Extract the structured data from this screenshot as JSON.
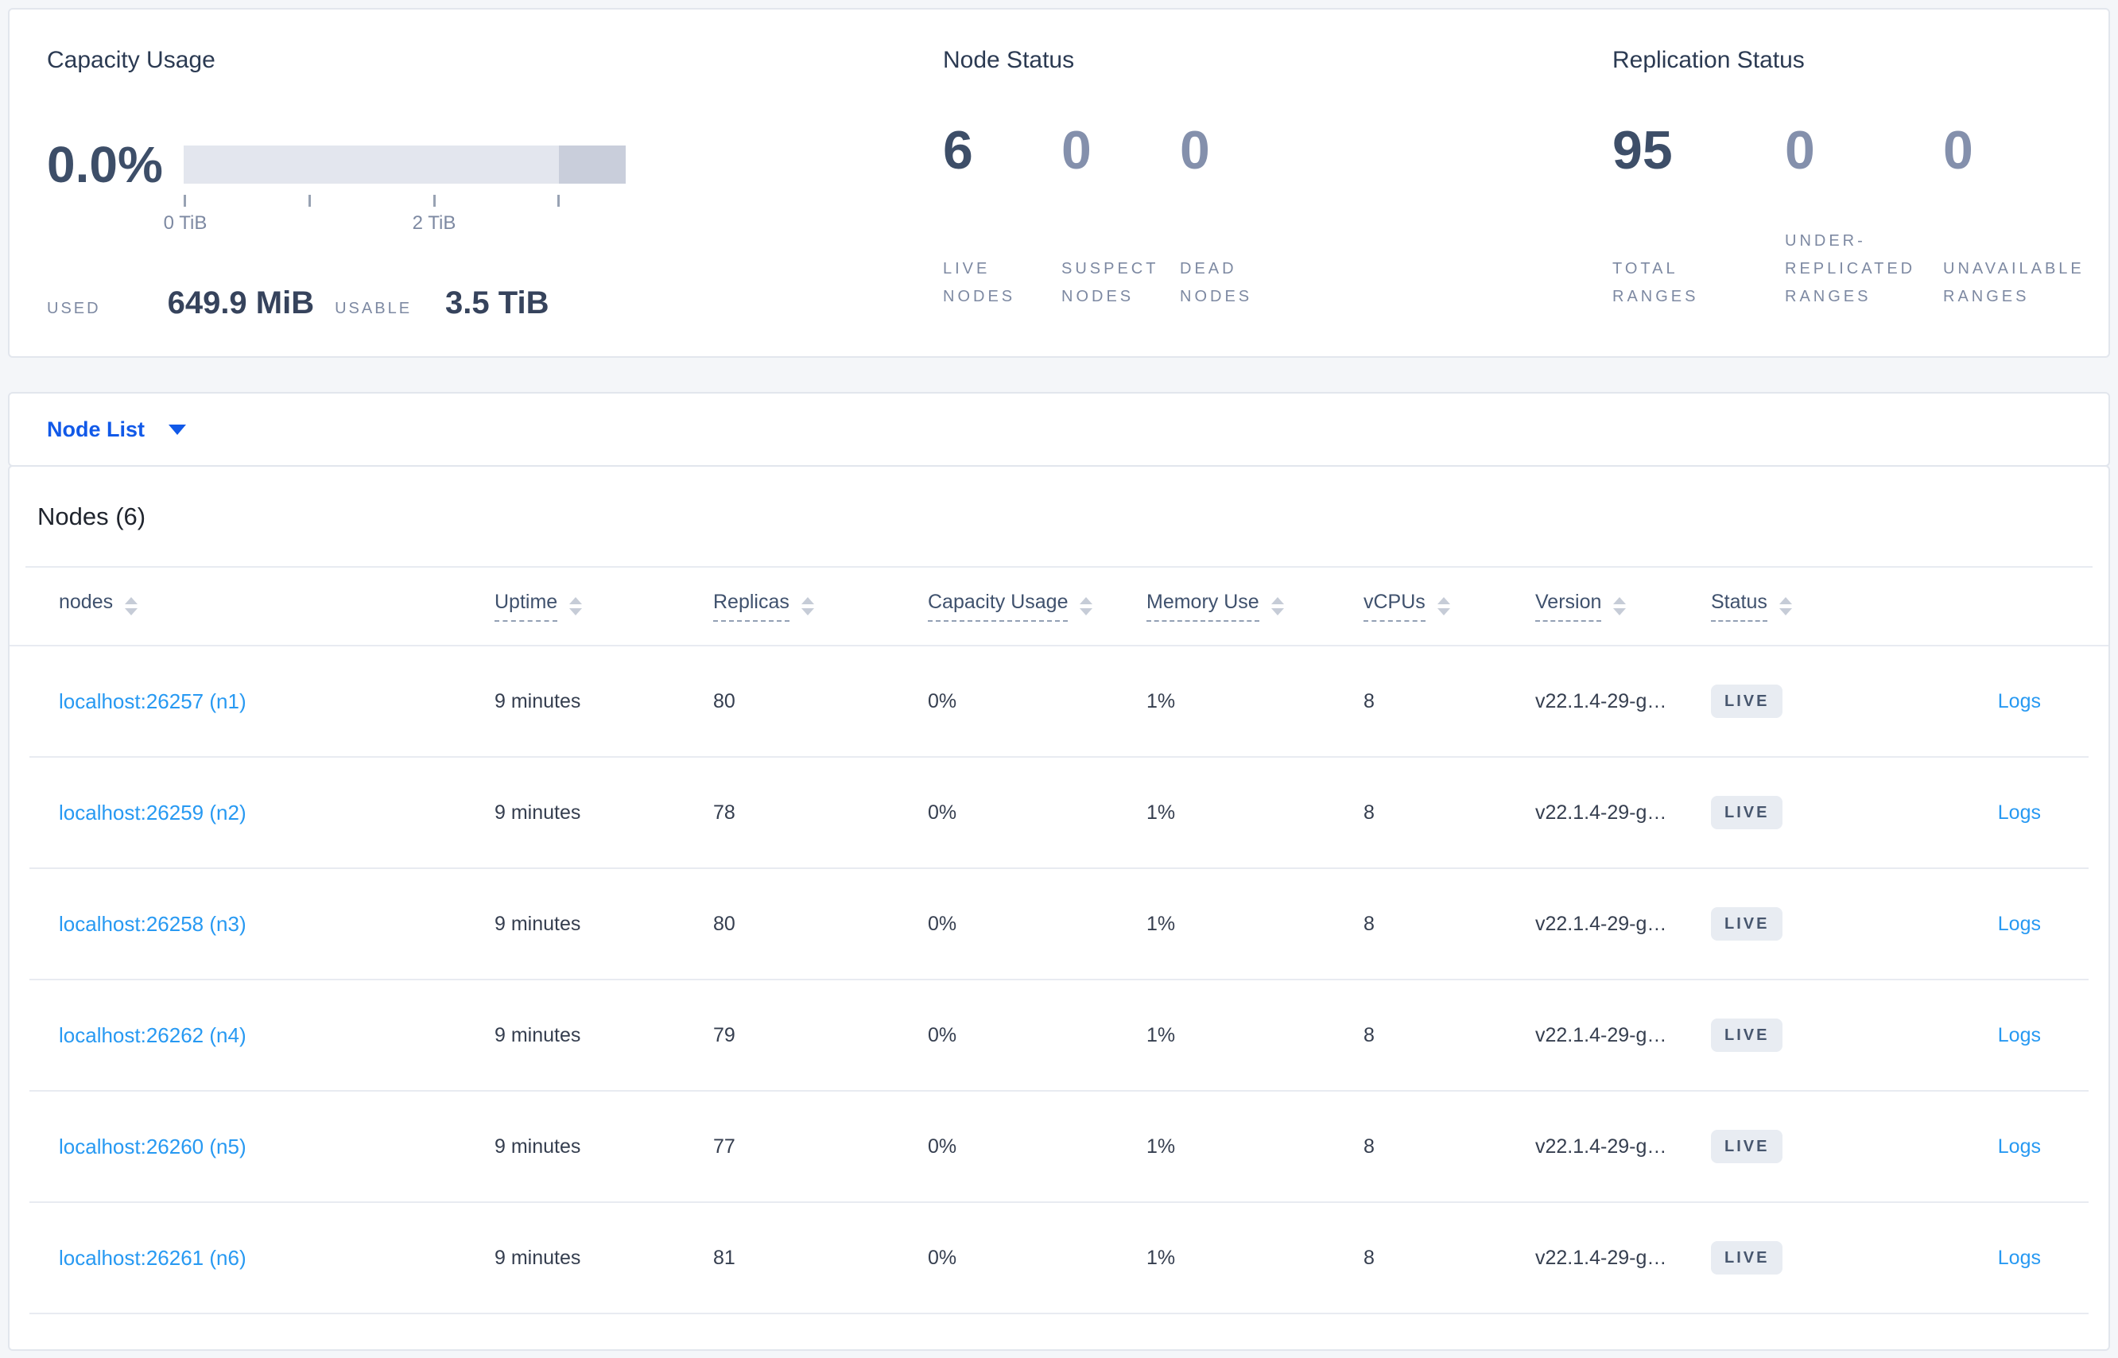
{
  "summary": {
    "capacity": {
      "title": "Capacity Usage",
      "percent": "0.0%",
      "axis_tick_0": "0 TiB",
      "axis_tick_2": "2 TiB",
      "used_label": "USED",
      "used_value": "649.9 MiB",
      "usable_label": "USABLE",
      "usable_value": "3.5 TiB"
    },
    "node_status": {
      "title": "Node Status",
      "stats": [
        {
          "value": "6",
          "label": "LIVE\nNODES"
        },
        {
          "value": "0",
          "label": "SUSPECT\nNODES"
        },
        {
          "value": "0",
          "label": "DEAD\nNODES"
        }
      ]
    },
    "replication": {
      "title": "Replication Status",
      "stats": [
        {
          "value": "95",
          "label": "TOTAL\nRANGES"
        },
        {
          "value": "0",
          "label": "UNDER-\nREPLICATED\nRANGES"
        },
        {
          "value": "0",
          "label": "UNAVAILABLE\nRANGES"
        }
      ]
    }
  },
  "view_selector": {
    "label": "Node List"
  },
  "table": {
    "title": "Nodes (6)",
    "columns": [
      {
        "label": "nodes",
        "dashed": false
      },
      {
        "label": "Uptime",
        "dashed": true
      },
      {
        "label": "Replicas",
        "dashed": true
      },
      {
        "label": "Capacity Usage",
        "dashed": true
      },
      {
        "label": "Memory Use",
        "dashed": true
      },
      {
        "label": "vCPUs",
        "dashed": true
      },
      {
        "label": "Version",
        "dashed": true
      },
      {
        "label": "Status",
        "dashed": true
      }
    ],
    "rows": [
      {
        "node": "localhost:26257 (n1)",
        "uptime": "9 minutes",
        "replicas": "80",
        "capacity": "0%",
        "memory": "1%",
        "vcpus": "8",
        "version": "v22.1.4-29-g…",
        "status": "LIVE",
        "logs": "Logs"
      },
      {
        "node": "localhost:26259 (n2)",
        "uptime": "9 minutes",
        "replicas": "78",
        "capacity": "0%",
        "memory": "1%",
        "vcpus": "8",
        "version": "v22.1.4-29-g…",
        "status": "LIVE",
        "logs": "Logs"
      },
      {
        "node": "localhost:26258 (n3)",
        "uptime": "9 minutes",
        "replicas": "80",
        "capacity": "0%",
        "memory": "1%",
        "vcpus": "8",
        "version": "v22.1.4-29-g…",
        "status": "LIVE",
        "logs": "Logs"
      },
      {
        "node": "localhost:26262 (n4)",
        "uptime": "9 minutes",
        "replicas": "79",
        "capacity": "0%",
        "memory": "1%",
        "vcpus": "8",
        "version": "v22.1.4-29-g…",
        "status": "LIVE",
        "logs": "Logs"
      },
      {
        "node": "localhost:26260 (n5)",
        "uptime": "9 minutes",
        "replicas": "77",
        "capacity": "0%",
        "memory": "1%",
        "vcpus": "8",
        "version": "v22.1.4-29-g…",
        "status": "LIVE",
        "logs": "Logs"
      },
      {
        "node": "localhost:26261 (n6)",
        "uptime": "9 minutes",
        "replicas": "81",
        "capacity": "0%",
        "memory": "1%",
        "vcpus": "8",
        "version": "v22.1.4-29-g…",
        "status": "LIVE",
        "logs": "Logs"
      }
    ]
  }
}
